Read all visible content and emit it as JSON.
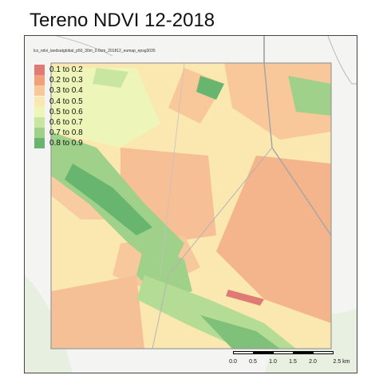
{
  "title": "Tereno NDVI 12-2018",
  "layer_name": "lcx_ndvi_landsatglobal_p50_30m_0.0cm_201812_eumap_epsg3035",
  "legend": [
    {
      "label": "0.1 to 0.2",
      "color": "#e07a74"
    },
    {
      "label": "0.2 to 0.3",
      "color": "#f2a07a"
    },
    {
      "label": "0.3 to 0.4",
      "color": "#f8c89a"
    },
    {
      "label": "0.4 to 0.5",
      "color": "#fbe8b0"
    },
    {
      "label": "0.5 to 0.6",
      "color": "#eef5b8"
    },
    {
      "label": "0.6 to 0.7",
      "color": "#c9e6a0"
    },
    {
      "label": "0.7 to 0.8",
      "color": "#9fd18a"
    },
    {
      "label": "0.8 to 0.9",
      "color": "#67b56e"
    }
  ],
  "scale_bar": {
    "ticks": [
      "0.0",
      "0.5",
      "1.0",
      "1.5",
      "2.0",
      "2.5 km"
    ]
  }
}
